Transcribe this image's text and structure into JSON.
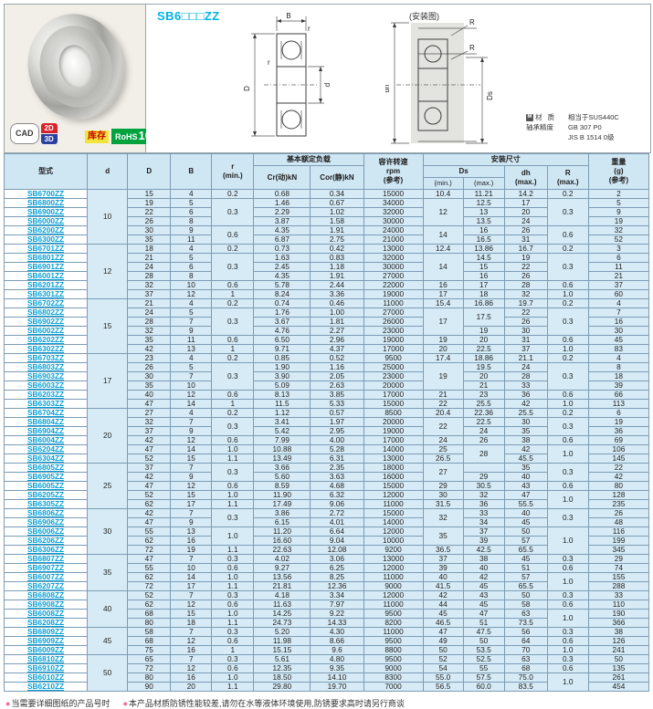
{
  "product": {
    "title": "SB6□□□ZZ",
    "install_label": "(安装图)",
    "badges": {
      "cad": "CAD",
      "cad_2d": "2D",
      "cad_3d": "3D",
      "stock": "库存",
      "rohs_word": "RoHS",
      "rohs_num": "10"
    },
    "material": {
      "icon": "M",
      "line1_label": "材 质",
      "line1_value": "相当于SUS440C",
      "line2_label": "轴承精度",
      "line2_value": "GB 307 P0",
      "line3_value": "JIS B 1514 0级"
    },
    "dim_labels": {
      "B": "B",
      "D": "D",
      "d": "d",
      "r1": "r",
      "r2": "r",
      "R1": "R",
      "R2": "R",
      "dh": "dh",
      "Ds": "Ds"
    },
    "colors": {
      "accent_cyan": "#00b2e3",
      "link_blue": "#009fd8",
      "cell_blue": "#d6ebf6",
      "stock_yellow": "#f2e438",
      "stock_red": "#cc0000",
      "rohs_green": "#00a33e",
      "cad_red": "#d8232a",
      "cad_blue": "#2b3f9e"
    }
  },
  "table": {
    "header": {
      "model": "型式",
      "d": "d",
      "D": "D",
      "B": "B",
      "r": "r\n(min.)",
      "load": "基本额定负载",
      "cr": "Cr(动)kN",
      "cor": "Cor(静)kN",
      "rpm": "容许转速\nrpm\n(参考)",
      "mount": "安装尺寸",
      "ds": "Ds",
      "min": "(min.)",
      "max": "(max.)",
      "dh": "dh\n(max.)",
      "R": "R\n(max.)",
      "weight": "重量\n(g)\n(参考)"
    },
    "rows": [
      [
        "SB6700ZZ",
        [
          "10",
          6
        ],
        "15",
        "4",
        "0.2",
        "0.68",
        "0.34",
        "15000",
        "10.4",
        "11.21",
        "14.2",
        "0.2",
        "2"
      ],
      [
        "SB6800ZZ",
        "19",
        "5",
        [
          "0.3",
          3
        ],
        "1.46",
        "0.67",
        "34000",
        [
          "12",
          3
        ],
        "12.5",
        "17",
        [
          "0.3",
          3
        ],
        "5"
      ],
      [
        "SB6900ZZ",
        "22",
        "6",
        "2.29",
        "1.02",
        "32000",
        "13",
        "20",
        "9"
      ],
      [
        "SB6000ZZ",
        "26",
        "8",
        "3.87",
        "1.58",
        "30000",
        "13.5",
        "24",
        "19"
      ],
      [
        "SB6200ZZ",
        "30",
        "9",
        [
          "0.6",
          2
        ],
        "4.35",
        "1.91",
        "24000",
        [
          "14",
          2
        ],
        "16",
        "26",
        [
          "0.6",
          2
        ],
        "32"
      ],
      [
        "SB6300ZZ",
        "35",
        "11",
        "6.87",
        "2.75",
        "21000",
        "16.5",
        "31",
        "52"
      ],
      [
        "SB6701ZZ",
        [
          "12",
          6
        ],
        "18",
        "4",
        "0.2",
        "0.73",
        "0.42",
        "13000",
        "12.4",
        "13.86",
        "16.7",
        "0.2",
        "3"
      ],
      [
        "SB6801ZZ",
        "21",
        "5",
        [
          "0.3",
          3
        ],
        "1.63",
        "0.83",
        "32000",
        [
          "14",
          3
        ],
        "14.5",
        "19",
        [
          "0.3",
          3
        ],
        "6"
      ],
      [
        "SB6901ZZ",
        "24",
        "6",
        "2.45",
        "1.18",
        "30000",
        "15",
        "22",
        "11"
      ],
      [
        "SB6001ZZ",
        "28",
        "8",
        "4.35",
        "1.91",
        "27000",
        "16",
        "26",
        "21"
      ],
      [
        "SB6201ZZ",
        "32",
        "10",
        "0.6",
        "5.78",
        "2.44",
        "22000",
        "16",
        "17",
        "28",
        "0.6",
        "37"
      ],
      [
        "SB6301ZZ",
        "37",
        "12",
        "1",
        "8.24",
        "3.36",
        "19000",
        "17",
        "18",
        "32",
        "1.0",
        "60"
      ],
      [
        "SB6702ZZ",
        [
          "15",
          6
        ],
        "21",
        "4",
        "0.2",
        "0.74",
        "0.46",
        "11000",
        "15.4",
        "16.86",
        "19.7",
        "0.2",
        "4"
      ],
      [
        "SB6802ZZ",
        "24",
        "5",
        [
          "0.3",
          3
        ],
        "1.76",
        "1.00",
        "27000",
        [
          "17",
          3
        ],
        [
          "17.5",
          2
        ],
        "22",
        [
          "0.3",
          3
        ],
        "7"
      ],
      [
        "SB6902ZZ",
        "28",
        "7",
        "3.67",
        "1.81",
        "26000",
        "26",
        "16"
      ],
      [
        "SB6002ZZ",
        "32",
        "9",
        "4.76",
        "2.27",
        "23000",
        "19",
        "30",
        "30"
      ],
      [
        "SB6202ZZ",
        "35",
        "11",
        "0.6",
        "6.50",
        "2.96",
        "19000",
        "19",
        "20",
        "31",
        "0.6",
        "45"
      ],
      [
        "SB6302ZZ",
        "42",
        "13",
        "1",
        "9.71",
        "4.37",
        "17000",
        "20",
        "22.5",
        "37",
        "1.0",
        "83"
      ],
      [
        "SB6703ZZ",
        [
          "17",
          6
        ],
        "23",
        "4",
        "0.2",
        "0.85",
        "0.52",
        "9500",
        "17.4",
        "18.86",
        "21.1",
        "0.2",
        "4"
      ],
      [
        "SB6803ZZ",
        "26",
        "5",
        [
          "0.3",
          3
        ],
        "1.90",
        "1.16",
        "25000",
        [
          "19",
          3
        ],
        "19.5",
        "24",
        [
          "0.3",
          3
        ],
        "8"
      ],
      [
        "SB6903ZZ",
        "30",
        "7",
        "3.90",
        "2.05",
        "23000",
        "20",
        "28",
        "18"
      ],
      [
        "SB6003ZZ",
        "35",
        "10",
        "5.09",
        "2.63",
        "20000",
        "21",
        "33",
        "39"
      ],
      [
        "SB6203ZZ",
        "40",
        "12",
        "0.6",
        "8.13",
        "3.85",
        "17000",
        "21",
        "23",
        "36",
        "0.6",
        "66"
      ],
      [
        "SB6303ZZ",
        "47",
        "14",
        "1",
        "11.5",
        "5.33",
        "15000",
        "22",
        "25.5",
        "42",
        "1.0",
        "113"
      ],
      [
        "SB6704ZZ",
        [
          "20",
          6
        ],
        "27",
        "4",
        "0.2",
        "1.12",
        "0.57",
        "8500",
        "20.4",
        "22.36",
        "25.5",
        "0.2",
        "6"
      ],
      [
        "SB6804ZZ",
        "32",
        "7",
        [
          "0.3",
          2
        ],
        "3.41",
        "1.97",
        "20000",
        [
          "22",
          2
        ],
        "22.5",
        "30",
        [
          "0.3",
          2
        ],
        "19"
      ],
      [
        "SB6904ZZ",
        "37",
        "9",
        "5.42",
        "2.95",
        "19000",
        "24",
        "35",
        "36"
      ],
      [
        "SB6004ZZ",
        "42",
        "12",
        "0.6",
        "7.99",
        "4.00",
        "17000",
        "24",
        "26",
        "38",
        "0.6",
        "69"
      ],
      [
        "SB6204ZZ",
        "47",
        "14",
        "1.0",
        "10.88",
        "5.28",
        "14000",
        "25",
        [
          "28",
          2
        ],
        "42",
        [
          "1.0",
          2
        ],
        "106"
      ],
      [
        "SB6304ZZ",
        "52",
        "15",
        "1.1",
        "13.49",
        "6.31",
        "13000",
        "26.5",
        "45.5",
        "145"
      ],
      [
        "SB6805ZZ",
        [
          "25",
          5
        ],
        "37",
        "7",
        [
          "0.3",
          2
        ],
        "3.66",
        "2.35",
        "18000",
        [
          "27",
          2
        ],
        "",
        "35",
        [
          "0.3",
          2
        ],
        "22"
      ],
      [
        "SB6905ZZ",
        "42",
        "9",
        "5.60",
        "3.63",
        "16000",
        "29",
        "40",
        "42"
      ],
      [
        "SB6005ZZ",
        "47",
        "12",
        "0.6",
        "8.59",
        "4.68",
        "15000",
        "29",
        "30.5",
        "43",
        "0.6",
        "80"
      ],
      [
        "SB6205ZZ",
        "52",
        "15",
        "1.0",
        "11.90",
        "6.32",
        "12000",
        "30",
        "32",
        "47",
        [
          "1.0",
          2
        ],
        "128"
      ],
      [
        "SB6305ZZ",
        "62",
        "17",
        "1.1",
        "17.49",
        "9.06",
        "11000",
        "31.5",
        "36",
        "55.5",
        "235"
      ],
      [
        "SB6806ZZ",
        [
          "30",
          5
        ],
        "42",
        "7",
        [
          "0.3",
          2
        ],
        "3.86",
        "2.72",
        "15000",
        [
          "32",
          2
        ],
        "33",
        "40",
        [
          "0.3",
          2
        ],
        "26"
      ],
      [
        "SB6906ZZ",
        "47",
        "9",
        "6.15",
        "4.01",
        "14000",
        "34",
        "45",
        "48"
      ],
      [
        "SB6006ZZ",
        "55",
        "13",
        [
          "1.0",
          2
        ],
        "11.20",
        "6.64",
        "12000",
        [
          "35",
          2
        ],
        "37",
        "50",
        [
          "1.0",
          3
        ],
        "116"
      ],
      [
        "SB6206ZZ",
        "62",
        "16",
        "16.60",
        "9.04",
        "10000",
        "39",
        "57",
        "199"
      ],
      [
        "SB6306ZZ",
        "72",
        "19",
        "1.1",
        "22.63",
        "12.08",
        "9200",
        "36.5",
        "42.5",
        "65.5",
        "345"
      ],
      [
        "SB6807ZZ",
        [
          "35",
          4
        ],
        "47",
        "7",
        "0.3",
        "4.02",
        "3.06",
        "13000",
        "37",
        "38",
        "45",
        "0.3",
        "29"
      ],
      [
        "SB6907ZZ",
        "55",
        "10",
        "0.6",
        "9.27",
        "6.25",
        "12000",
        "39",
        "40",
        "51",
        "0.6",
        "74"
      ],
      [
        "SB6007ZZ",
        "62",
        "14",
        "1.0",
        "13.56",
        "8.25",
        "11000",
        "40",
        "42",
        "57",
        [
          "1.0",
          2
        ],
        "155"
      ],
      [
        "SB6207ZZ",
        "72",
        "17",
        "1.1",
        "21.81",
        "12.36",
        "9000",
        "41.5",
        "45",
        "65.5",
        "288"
      ],
      [
        "SB6808ZZ",
        [
          "40",
          4
        ],
        "52",
        "7",
        "0.3",
        "4.18",
        "3.34",
        "12000",
        "42",
        "43",
        "50",
        "0.3",
        "33"
      ],
      [
        "SB6908ZZ",
        "62",
        "12",
        "0.6",
        "11.63",
        "7.97",
        "11000",
        "44",
        "45",
        "58",
        "0.6",
        "110"
      ],
      [
        "SB6008ZZ",
        "68",
        "15",
        "1.0",
        "14.25",
        "9.22",
        "9500",
        "45",
        "47",
        "63",
        [
          "1.0",
          2
        ],
        "190"
      ],
      [
        "SB6208ZZ",
        "80",
        "18",
        "1.1",
        "24.73",
        "14.33",
        "8200",
        "46.5",
        "51",
        "73.5",
        "366"
      ],
      [
        "SB6809ZZ",
        [
          "45",
          3
        ],
        "58",
        "7",
        "0.3",
        "5.20",
        "4.30",
        "11000",
        "47",
        "47.5",
        "56",
        "0.3",
        "38"
      ],
      [
        "SB6909ZZ",
        "68",
        "12",
        "0.6",
        "11.98",
        "8.66",
        "9500",
        "49",
        "50",
        "64",
        "0.6",
        "126"
      ],
      [
        "SB6009ZZ",
        "75",
        "16",
        "1",
        "15.15",
        "9.6",
        "8800",
        "50",
        "53.5",
        "70",
        "1.0",
        "241"
      ],
      [
        "SB6810ZZ",
        [
          "50",
          4
        ],
        "65",
        "7",
        "0.3",
        "5.61",
        "4.80",
        "9500",
        "52",
        "52.5",
        "63",
        "0.3",
        "50"
      ],
      [
        "SB6910ZZ",
        "72",
        "12",
        "0.6",
        "12.35",
        "9.35",
        "9000",
        "54",
        "55",
        "68",
        "0.6",
        "135"
      ],
      [
        "SB6010ZZ",
        "80",
        "16",
        "1.0",
        "18.50",
        "14.10",
        "8300",
        "55.0",
        "57.5",
        "75.0",
        [
          "1.0",
          2
        ],
        "261"
      ],
      [
        "SB6210ZZ",
        "90",
        "20",
        "1.1",
        "29.80",
        "19.70",
        "7000",
        "56.5",
        "60.0",
        "83.5",
        "454"
      ]
    ]
  },
  "footnotes_clipped": [
    {
      "bullet": "●",
      "text": "当需要详细图纸的产品号时"
    },
    {
      "bullet": "●",
      "text": "本产品材质防锈性能较差,请勿在水等液体环境使用,防锈要求高时请另行商谈"
    }
  ]
}
